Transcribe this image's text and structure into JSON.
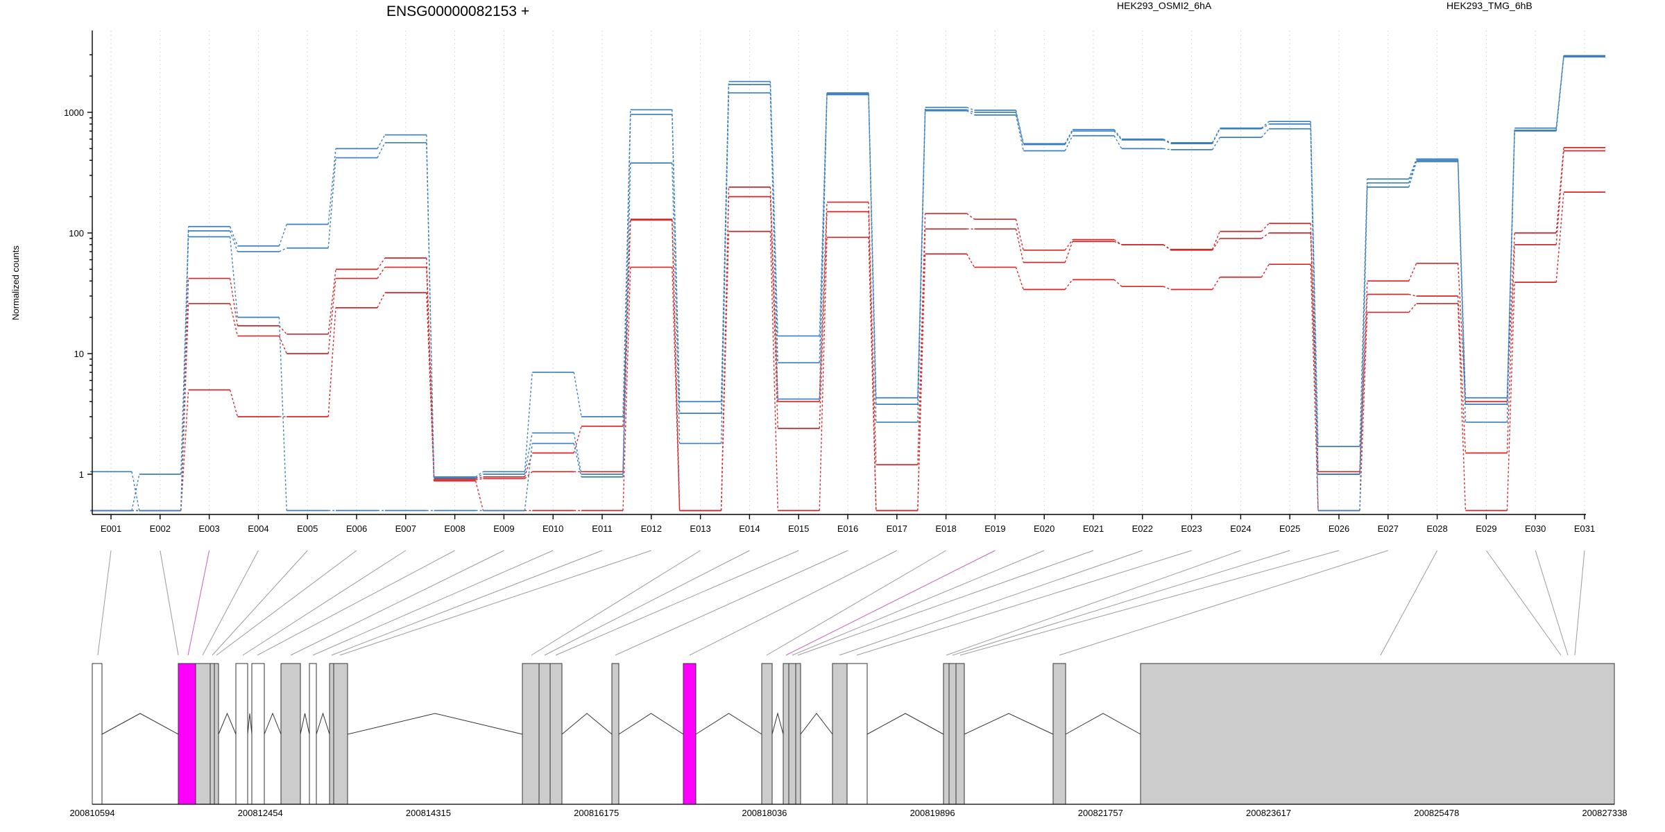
{
  "title": "ENSG00000082153 +",
  "ylabel": "Normalized counts",
  "legend": [
    {
      "label": "HEK293_OSMI2_6hA",
      "color": "#d62728"
    },
    {
      "label": "HEK293_TMG_6hB",
      "color": "#3a7fc1"
    }
  ],
  "chart_data": {
    "type": "line",
    "title": "ENSG00000082153 +",
    "ylabel": "Normalized counts",
    "yscale": "log",
    "ylim": [
      0.5,
      3500
    ],
    "y_ticks": [
      1,
      10,
      100,
      1000
    ],
    "y_tick_labels": [
      "1",
      "10",
      "100",
      "1000"
    ],
    "grid": "vertical dotted lines at each exon",
    "categories": [
      "E001",
      "E002",
      "E003",
      "E004",
      "E005",
      "E006",
      "E007",
      "E008",
      "E009",
      "E010",
      "E011",
      "E012",
      "E013",
      "E014",
      "E015",
      "E016",
      "E017",
      "E018",
      "E019",
      "E020",
      "E021",
      "E022",
      "E023",
      "E024",
      "E025",
      "E026",
      "E027",
      "E028",
      "E029",
      "E030",
      "E031"
    ],
    "series": [
      {
        "name": "HEK293_OSMI2_6hA",
        "color": "#d62728",
        "values": [
          0.5,
          0.5,
          42,
          17,
          14.5,
          50,
          62,
          0.92,
          0.95,
          1.5,
          2.5,
          130,
          0.5,
          240,
          4,
          180,
          1.2,
          145,
          130,
          72,
          88,
          80,
          73,
          103,
          120,
          1.05,
          40,
          56,
          4,
          100,
          510
        ]
      },
      {
        "name": "HEK293_OSMI2_6hA",
        "color": "#d62728",
        "values": [
          0.5,
          0.5,
          26,
          14,
          10,
          42,
          52,
          0.9,
          0.92,
          1.05,
          1.05,
          128,
          0.5,
          200,
          2.4,
          150,
          0.5,
          108,
          108,
          57,
          85,
          80,
          72,
          90,
          100,
          1.0,
          31,
          30,
          1.5,
          80,
          480
        ]
      },
      {
        "name": "HEK293_OSMI2_6hA",
        "color": "#d62728",
        "values": [
          0.5,
          0.5,
          5,
          3,
          3,
          24,
          32,
          0.88,
          0.5,
          0.5,
          0.5,
          52,
          0.5,
          103,
          0.5,
          92,
          0.5,
          67,
          52,
          34,
          41,
          36,
          34,
          43,
          55,
          0.5,
          22,
          26,
          0.5,
          39,
          218
        ]
      },
      {
        "name": "HEK293_TMG_6hB",
        "color": "#3a7fc1",
        "values": [
          1.05,
          0.5,
          113,
          78,
          118,
          500,
          650,
          0.95,
          1.05,
          7,
          3,
          1050,
          4,
          1800,
          14,
          1450,
          4.3,
          1100,
          1040,
          550,
          720,
          600,
          560,
          740,
          840,
          1.7,
          280,
          410,
          4.3,
          740,
          2950
        ]
      },
      {
        "name": "HEK293_TMG_6hB",
        "color": "#3a7fc1",
        "values": [
          0.5,
          1.0,
          104,
          70,
          75,
          420,
          560,
          0.93,
          1.0,
          2.2,
          1.0,
          960,
          3.2,
          1700,
          8.4,
          1420,
          3.8,
          1050,
          1000,
          540,
          700,
          590,
          550,
          730,
          800,
          1.0,
          260,
          400,
          3.8,
          710,
          2900
        ]
      },
      {
        "name": "HEK293_TMG_6hB",
        "color": "#3a7fc1",
        "values": [
          0.5,
          0.5,
          93,
          20,
          0.5,
          0.5,
          0.5,
          0.5,
          0.5,
          1.8,
          0.95,
          380,
          1.8,
          1450,
          4.2,
          1400,
          2.7,
          1030,
          950,
          480,
          640,
          500,
          490,
          620,
          730,
          0.5,
          240,
          390,
          2.7,
          700,
          2880
        ]
      }
    ]
  },
  "exon_labels": [
    "E001",
    "E002",
    "E003",
    "E004",
    "E005",
    "E006",
    "E007",
    "E008",
    "E009",
    "E010",
    "E011",
    "E012",
    "E013",
    "E014",
    "E015",
    "E016",
    "E017",
    "E018",
    "E019",
    "E020",
    "E021",
    "E022",
    "E023",
    "E024",
    "E025",
    "E026",
    "E027",
    "E028",
    "E029",
    "E030",
    "E031"
  ],
  "gene_model": {
    "genomic_ticks": [
      "200810594",
      "200812454",
      "200814315",
      "200816175",
      "200818036",
      "200819896",
      "200821757",
      "200823617",
      "200825478",
      "200827338"
    ],
    "highlighted_exons": [
      "E003",
      "E019"
    ],
    "highlight_color": "#ff00ff",
    "exon_fill": "#cccccc",
    "exon_box_fill": "#ffffff"
  }
}
